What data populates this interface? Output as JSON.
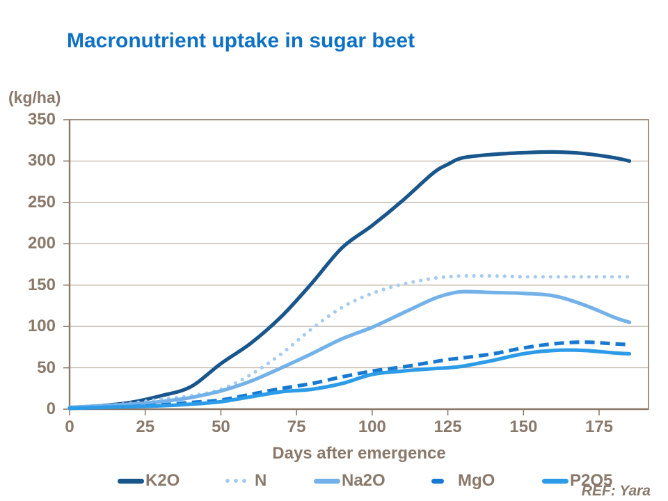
{
  "title": "Macronutrient uptake in sugar beet",
  "y_axis_unit": "(kg/ha)",
  "x_axis_label": "Days after emergence",
  "ref_text": "REF: Yara",
  "colors": {
    "title": "#0e71c4",
    "text_brown": "#8a796b",
    "axis": "#8a796b",
    "grid": "#b9ac9e",
    "background": "#ffffff"
  },
  "chart_data": {
    "type": "line",
    "title": "Macronutrient uptake in sugar beet",
    "xlabel": "Days after emergence",
    "ylabel": "(kg/ha)",
    "xlim": [
      0,
      191
    ],
    "ylim": [
      0,
      350
    ],
    "x_ticks": [
      0,
      25,
      50,
      75,
      100,
      125,
      150,
      175
    ],
    "y_ticks": [
      0,
      50,
      100,
      150,
      200,
      250,
      300,
      350
    ],
    "grid": "horizontal",
    "legend_position": "bottom",
    "x": [
      0,
      10,
      20,
      30,
      40,
      50,
      60,
      70,
      80,
      90,
      100,
      110,
      120,
      125,
      130,
      140,
      150,
      160,
      170,
      180,
      185
    ],
    "series": [
      {
        "name": "K2O",
        "color": "#19568c",
        "style": "solid",
        "values": [
          2,
          4,
          8,
          16,
          27,
          55,
          80,
          112,
          152,
          195,
          222,
          252,
          285,
          296,
          304,
          308,
          310,
          311,
          309,
          304,
          300
        ]
      },
      {
        "name": "N",
        "color": "#a6cbf0",
        "style": "dotted",
        "values": [
          2,
          4,
          7,
          12,
          16,
          24,
          42,
          67,
          97,
          123,
          140,
          151,
          158,
          160,
          161,
          161,
          160,
          160,
          160,
          160,
          160
        ]
      },
      {
        "name": "Na2O",
        "color": "#73b1e9",
        "style": "solid",
        "values": [
          2,
          4,
          6,
          9,
          14,
          22,
          34,
          50,
          67,
          85,
          99,
          116,
          133,
          139,
          142,
          141,
          140,
          137,
          126,
          111,
          105
        ]
      },
      {
        "name": "MgO",
        "color": "#1879d3",
        "style": "dashed",
        "values": [
          1,
          2,
          3,
          5,
          8,
          11,
          18,
          25,
          31,
          39,
          46,
          51,
          57,
          60,
          62,
          67,
          74,
          79,
          81,
          79,
          78
        ]
      },
      {
        "name": "P2O5",
        "color": "#2c9ce8",
        "style": "solid",
        "values": [
          1,
          2,
          3,
          4,
          6,
          9,
          15,
          21,
          24,
          31,
          42,
          46,
          49,
          50,
          52,
          59,
          67,
          71,
          71,
          68,
          67
        ]
      }
    ]
  }
}
